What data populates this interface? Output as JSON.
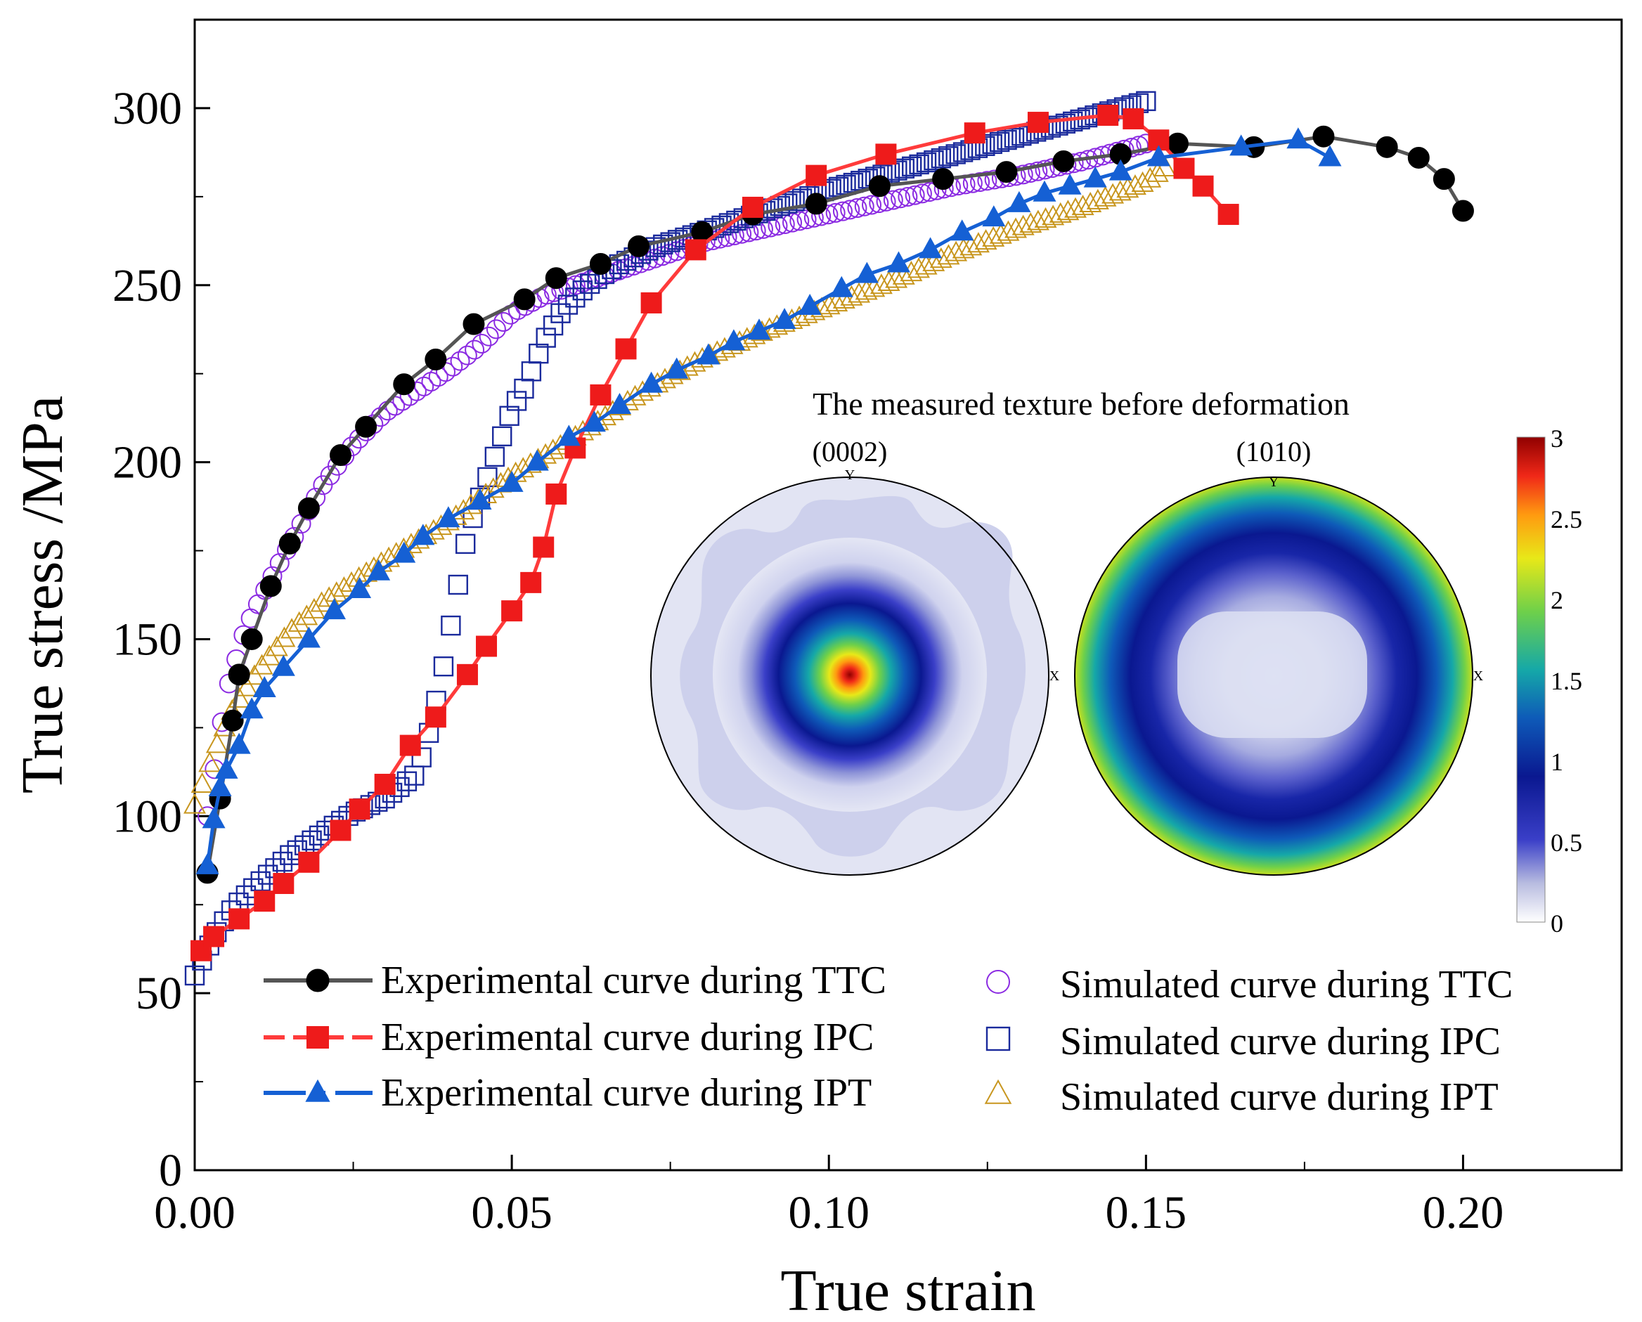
{
  "chart_data": {
    "type": "line",
    "title": "",
    "xlabel": "True strain",
    "ylabel": "True stress /MPa",
    "xlim": [
      0.0,
      0.225
    ],
    "ylim": [
      0,
      325
    ],
    "x_ticks": [
      0.0,
      0.05,
      0.1,
      0.15,
      0.2
    ],
    "x_tick_labels": [
      "0.00",
      "0.05",
      "0.10",
      "0.15",
      "0.20"
    ],
    "y_ticks": [
      0,
      50,
      100,
      150,
      200,
      250,
      300
    ],
    "y_tick_labels": [
      "0",
      "50",
      "100",
      "150",
      "200",
      "250",
      "300"
    ],
    "legend_position": "bottom",
    "series": [
      {
        "name": "Experimental curve during TTC",
        "kind": "experimental",
        "color": "#000000",
        "line_color": "#555555",
        "marker": "circle",
        "x": [
          0.002,
          0.004,
          0.006,
          0.007,
          0.009,
          0.012,
          0.015,
          0.018,
          0.023,
          0.027,
          0.033,
          0.038,
          0.044,
          0.052,
          0.057,
          0.064,
          0.07,
          0.08,
          0.088,
          0.098,
          0.108,
          0.118,
          0.128,
          0.137,
          0.146,
          0.155,
          0.167,
          0.178,
          0.188,
          0.193,
          0.197,
          0.2
        ],
        "y": [
          84,
          105,
          127,
          140,
          150,
          165,
          177,
          187,
          202,
          210,
          222,
          229,
          239,
          246,
          252,
          256,
          261,
          265,
          270,
          273,
          278,
          280,
          282,
          285,
          287,
          290,
          289,
          292,
          289,
          286,
          280,
          271
        ]
      },
      {
        "name": "Experimental curve during IPC",
        "kind": "experimental",
        "color": "#ee1b1b",
        "line_color": "#ff3b3b",
        "marker": "square",
        "x": [
          0.001,
          0.003,
          0.007,
          0.011,
          0.014,
          0.018,
          0.023,
          0.026,
          0.03,
          0.034,
          0.038,
          0.043,
          0.046,
          0.05,
          0.053,
          0.055,
          0.057,
          0.06,
          0.064,
          0.068,
          0.072,
          0.079,
          0.088,
          0.098,
          0.109,
          0.123,
          0.133,
          0.144,
          0.148,
          0.152,
          0.156,
          0.159,
          0.163
        ],
        "y": [
          62,
          66,
          71,
          76,
          81,
          87,
          96,
          102,
          109,
          120,
          128,
          140,
          148,
          158,
          166,
          176,
          191,
          204,
          219,
          232,
          245,
          260,
          272,
          281,
          287,
          293,
          296,
          298,
          297,
          291,
          283,
          278,
          270
        ]
      },
      {
        "name": "Experimental curve during IPT",
        "kind": "experimental",
        "color": "#1560d4",
        "line_color": "#1560d4",
        "marker": "triangle",
        "x": [
          0.002,
          0.003,
          0.004,
          0.005,
          0.007,
          0.009,
          0.011,
          0.014,
          0.018,
          0.022,
          0.026,
          0.029,
          0.033,
          0.036,
          0.04,
          0.045,
          0.05,
          0.054,
          0.059,
          0.063,
          0.067,
          0.072,
          0.076,
          0.081,
          0.085,
          0.089,
          0.093,
          0.097,
          0.102,
          0.106,
          0.111,
          0.116,
          0.121,
          0.126,
          0.13,
          0.134,
          0.138,
          0.142,
          0.146,
          0.152,
          0.165,
          0.174,
          0.179
        ],
        "y": [
          86,
          99,
          108,
          113,
          120,
          130,
          136,
          142,
          150,
          158,
          164,
          169,
          174,
          179,
          184,
          189,
          194,
          200,
          207,
          211,
          216,
          222,
          226,
          230,
          234,
          237,
          240,
          244,
          249,
          253,
          256,
          260,
          265,
          269,
          273,
          276,
          278,
          280,
          282,
          286,
          289,
          291,
          286
        ]
      },
      {
        "name": "Simulated curve during TTC",
        "kind": "simulated",
        "color": "#8b2be2",
        "marker": "open-circle",
        "x": [
          0.002,
          0.005,
          0.008,
          0.012,
          0.016,
          0.02,
          0.025,
          0.03,
          0.035,
          0.04,
          0.045,
          0.05,
          0.055,
          0.06,
          0.065,
          0.07,
          0.075,
          0.08,
          0.09,
          0.1,
          0.11,
          0.12,
          0.13,
          0.14,
          0.15
        ],
        "y": [
          100,
          135,
          153,
          167,
          180,
          193,
          205,
          214,
          220,
          226,
          233,
          242,
          247,
          250,
          253,
          256,
          259,
          262,
          266,
          270,
          274,
          278,
          281,
          285,
          290
        ]
      },
      {
        "name": "Simulated curve during IPC",
        "kind": "simulated",
        "color": "#1a2a9c",
        "marker": "open-square",
        "x": [
          0.0,
          0.003,
          0.006,
          0.01,
          0.015,
          0.02,
          0.025,
          0.03,
          0.035,
          0.037,
          0.039,
          0.04,
          0.041,
          0.043,
          0.046,
          0.048,
          0.05,
          0.052,
          0.055,
          0.058,
          0.062,
          0.067,
          0.073,
          0.08,
          0.09,
          0.1,
          0.11,
          0.12,
          0.13,
          0.14,
          0.15
        ],
        "y": [
          55,
          66,
          74,
          81,
          89,
          95,
          101,
          105,
          112,
          124,
          140,
          150,
          160,
          180,
          195,
          205,
          215,
          221,
          234,
          243,
          250,
          256,
          261,
          265,
          271,
          277,
          282,
          287,
          292,
          297,
          302
        ]
      },
      {
        "name": "Simulated curve during IPT",
        "kind": "simulated",
        "color": "#c8961e",
        "marker": "open-triangle",
        "x": [
          0.0,
          0.003,
          0.006,
          0.01,
          0.015,
          0.02,
          0.03,
          0.04,
          0.05,
          0.06,
          0.07,
          0.08,
          0.09,
          0.1,
          0.11,
          0.12,
          0.13,
          0.14,
          0.15,
          0.153
        ],
        "y": [
          103,
          118,
          130,
          141,
          152,
          160,
          172,
          183,
          196,
          207,
          219,
          229,
          237,
          244,
          251,
          259,
          266,
          272,
          279,
          283
        ]
      }
    ],
    "inset": {
      "title": "The measured texture before deformation",
      "pole_figures": [
        {
          "label": "(0002)",
          "y_axis": "Y",
          "x_axis": "X"
        },
        {
          "label": "(1010)",
          "y_axis": "Y",
          "x_axis": "X"
        }
      ],
      "colorbar": {
        "min": 0,
        "max": 3,
        "tick_labels": [
          "0",
          "0.5",
          "1",
          "1.5",
          "2",
          "2.5",
          "3"
        ],
        "colors": [
          "#ffffff",
          "#b8bce0",
          "#3a3fc8",
          "#0a1890",
          "#0e5ab8",
          "#15a8a8",
          "#6ed04a",
          "#e8e818",
          "#ff9a10",
          "#f02818",
          "#900000"
        ]
      }
    }
  }
}
